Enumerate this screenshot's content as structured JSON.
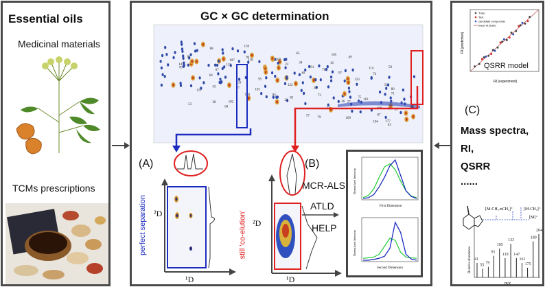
{
  "left_panel": {
    "title": "Essential oils",
    "medicinal_label": "Medicinal materials",
    "tcm_label": "TCMs prescriptions"
  },
  "center_panel": {
    "title": "GC × GC determination",
    "contour_peak_labels": [
      "118",
      "51",
      "76",
      "80",
      "95",
      "96",
      "101",
      "105",
      "108",
      "114",
      "115",
      "119",
      "123",
      "128",
      "121",
      "122",
      "133",
      "147",
      "156",
      "168",
      "177",
      "34",
      "38",
      "43",
      "46",
      "49",
      "53",
      "54",
      "57",
      "59",
      "60",
      "63",
      "64",
      "65",
      "67",
      "70",
      "71",
      "73",
      "74",
      "75",
      "79",
      "81",
      "84",
      "85",
      "87",
      "88",
      "91",
      "97",
      "99",
      "102",
      "104",
      "107",
      "109",
      "16",
      "17",
      "22",
      "23",
      "26",
      "27",
      "28",
      "33"
    ],
    "panel_a_label": "(A)",
    "panel_b_label": "(B)",
    "perfect_separation": "perfect separation",
    "still_coelution": "still 'co-elution'",
    "axis_2d": "²D",
    "axis_1d": "¹D",
    "methods": [
      "MCR-ALS",
      "ATLD",
      "HELP"
    ],
    "normalized_intensity": "Normalized Intensity",
    "first_dimension": "First Dimension",
    "second_dimension": "Second Dimension"
  },
  "right_panel": {
    "qsrr_model_label": "QSRR model",
    "panel_c_label": "(C)",
    "items": [
      "Mass spectra,",
      "RI,",
      "QSRR",
      "......"
    ],
    "scatter_legend": [
      "Train",
      "Test",
      "candidate compounds",
      "linear fit (train)"
    ],
    "scatter_xlabel": "RI (experiment)",
    "scatter_ylabel": "RI (prediction)",
    "ms_xlabel": "m/z",
    "ms_ylabel": "Relative abundance",
    "ms_annotations": [
      "[M-CH₃-nCH₂]⁺",
      "[M-CH₃]⁺",
      "[M]⁺",
      "204",
      "189",
      "161",
      "147",
      "133",
      "119",
      "105",
      "91",
      "93",
      "55",
      "41",
      "175"
    ]
  },
  "chart_data": [
    {
      "type": "line",
      "title": "",
      "xlabel": "First Dimension",
      "ylabel": "Normalized Intensity",
      "series": [
        {
          "name": "green",
          "color": "#2ecc40",
          "x": [
            0,
            1,
            2,
            3,
            4,
            5,
            6,
            7,
            8,
            9,
            10
          ],
          "values": [
            0.02,
            0.08,
            0.25,
            0.55,
            0.82,
            0.9,
            0.75,
            0.45,
            0.2,
            0.06,
            0.02
          ]
        },
        {
          "name": "blue",
          "color": "#1a2bbf",
          "x": [
            0,
            1,
            2,
            3,
            4,
            5,
            6,
            7,
            8,
            9,
            10
          ],
          "values": [
            0.0,
            0.02,
            0.1,
            0.3,
            0.55,
            0.85,
            1.0,
            0.6,
            0.2,
            0.05,
            0.0
          ]
        }
      ]
    },
    {
      "type": "line",
      "title": "",
      "xlabel": "Second Dimension",
      "ylabel": "Normalized Intensity",
      "series": [
        {
          "name": "green",
          "color": "#2ecc40",
          "x": [
            0,
            1,
            2,
            3,
            4,
            5,
            6,
            7,
            8,
            9,
            10
          ],
          "values": [
            0.05,
            0.06,
            0.08,
            0.15,
            0.35,
            0.55,
            0.5,
            0.2,
            0.08,
            0.06,
            0.05
          ]
        },
        {
          "name": "blue",
          "color": "#1a2bbf",
          "x": [
            0,
            1,
            2,
            3,
            4,
            5,
            6,
            7,
            8,
            9,
            10
          ],
          "values": [
            0.0,
            0.0,
            0.02,
            0.05,
            0.1,
            0.3,
            0.95,
            0.7,
            0.15,
            0.03,
            0.0
          ]
        }
      ]
    },
    {
      "type": "scatter",
      "title": "",
      "xlabel": "RI (experiment)",
      "ylabel": "RI (prediction)",
      "series": [
        {
          "name": "Train",
          "color": "#444444",
          "x": [
            1000,
            1050,
            1100,
            1150,
            1200,
            1250,
            1300,
            1350,
            1400,
            1450,
            1500,
            1550,
            1600
          ],
          "values": [
            1010,
            1040,
            1120,
            1140,
            1210,
            1240,
            1310,
            1330,
            1420,
            1440,
            1510,
            1530,
            1610
          ]
        },
        {
          "name": "Test",
          "color": "#d03030",
          "x": [
            1080,
            1180,
            1280,
            1380,
            1480,
            1580
          ],
          "values": [
            1100,
            1160,
            1300,
            1360,
            1500,
            1560
          ]
        },
        {
          "name": "candidate compounds",
          "color": "#3050c0",
          "x": [
            1120,
            1220,
            1320,
            1420,
            1520
          ],
          "values": [
            1130,
            1200,
            1340,
            1400,
            1540
          ]
        }
      ]
    },
    {
      "type": "bar",
      "title": "",
      "xlabel": "m/z",
      "ylabel": "Relative abundance",
      "categories": [
        "41",
        "55",
        "79",
        "91",
        "105",
        "119",
        "133",
        "147",
        "161",
        "175",
        "189",
        "204"
      ],
      "values": [
        30,
        18,
        22,
        45,
        60,
        40,
        70,
        40,
        30,
        20,
        75,
        90
      ]
    }
  ]
}
